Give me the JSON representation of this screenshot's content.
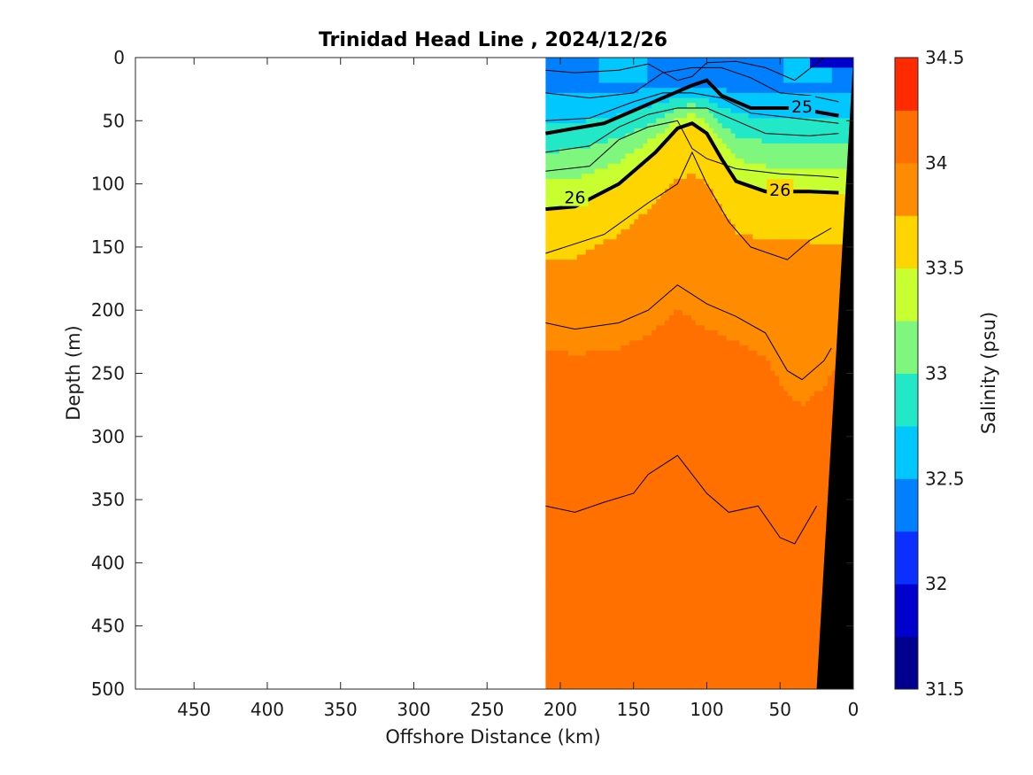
{
  "chart_data": {
    "type": "contour section",
    "title": "Trinidad Head Line , 2024/12/26",
    "xlabel": "Offshore Distance (km)",
    "ylabel": "Depth (m)",
    "x_axis_reversed": true,
    "xlim": [
      490,
      0
    ],
    "ylim": [
      0,
      500
    ],
    "x_ticks": [
      450,
      400,
      350,
      300,
      250,
      200,
      150,
      100,
      50,
      0
    ],
    "y_ticks": [
      0,
      50,
      100,
      150,
      200,
      250,
      300,
      350,
      400,
      450,
      500
    ],
    "data_extent_km": [
      210,
      0
    ],
    "colorbar": {
      "label": "Salinity (psu)",
      "range": [
        31.5,
        34.5
      ],
      "tick_labels": [
        "31.5",
        "32",
        "32.5",
        "33",
        "33.5",
        "34",
        "34.5"
      ],
      "levels": [
        31.5,
        31.75,
        32.0,
        32.25,
        32.5,
        32.75,
        33.0,
        33.25,
        33.5,
        33.75,
        34.0,
        34.25,
        34.5
      ],
      "colors": [
        "#00008f",
        "#0000cc",
        "#0a2fff",
        "#0080ff",
        "#00c8ff",
        "#22e8c8",
        "#7ff77f",
        "#c8ff30",
        "#ffd500",
        "#ff8c00",
        "#ff7000",
        "#ff2a00",
        "#d40000"
      ]
    },
    "density_contours": {
      "labeled": [
        {
          "level": 25,
          "label": "25",
          "points": [
            [
              210,
              60
            ],
            [
              170,
              52
            ],
            [
              130,
              32
            ],
            [
              110,
              22
            ],
            [
              100,
              18
            ],
            [
              90,
              30
            ],
            [
              70,
              40
            ],
            [
              40,
              40
            ],
            [
              10,
              46
            ]
          ]
        },
        {
          "level": 26,
          "label": "26",
          "points": [
            [
              210,
              120
            ],
            [
              190,
              118
            ],
            [
              160,
              100
            ],
            [
              135,
              75
            ],
            [
              120,
              56
            ],
            [
              110,
              52
            ],
            [
              100,
              60
            ],
            [
              90,
              80
            ],
            [
              80,
              98
            ],
            [
              60,
              106
            ],
            [
              30,
              106
            ],
            [
              10,
              107
            ]
          ]
        }
      ],
      "unlabeled": [
        {
          "points": [
            [
              210,
              10
            ],
            [
              190,
              12
            ],
            [
              160,
              10
            ],
            [
              140,
              5
            ],
            [
              120,
              18
            ],
            [
              110,
              15
            ],
            [
              100,
              4
            ],
            [
              80,
              3
            ],
            [
              60,
              8
            ],
            [
              40,
              18
            ],
            [
              20,
              0
            ]
          ]
        },
        {
          "points": [
            [
              210,
              28
            ],
            [
              180,
              32
            ],
            [
              150,
              28
            ],
            [
              130,
              12
            ],
            [
              110,
              8
            ],
            [
              90,
              8
            ],
            [
              70,
              16
            ],
            [
              50,
              28
            ],
            [
              30,
              30
            ],
            [
              10,
              35
            ]
          ]
        },
        {
          "points": [
            [
              210,
              50
            ],
            [
              180,
              48
            ],
            [
              150,
              35
            ],
            [
              130,
              28
            ],
            [
              110,
              28
            ],
            [
              90,
              32
            ],
            [
              70,
              44
            ],
            [
              40,
              48
            ],
            [
              10,
              52
            ]
          ]
        },
        {
          "points": [
            [
              210,
              75
            ],
            [
              180,
              70
            ],
            [
              160,
              55
            ],
            [
              140,
              45
            ],
            [
              120,
              40
            ],
            [
              100,
              40
            ],
            [
              80,
              50
            ],
            [
              60,
              60
            ],
            [
              30,
              62
            ],
            [
              10,
              60
            ]
          ]
        },
        {
          "points": [
            [
              210,
              90
            ],
            [
              180,
              86
            ],
            [
              160,
              65
            ],
            [
              140,
              55
            ],
            [
              120,
              50
            ],
            [
              110,
              72
            ],
            [
              100,
              80
            ],
            [
              80,
              88
            ],
            [
              50,
              92
            ],
            [
              20,
              94
            ],
            [
              10,
              95
            ]
          ]
        },
        {
          "points": [
            [
              210,
              155
            ],
            [
              170,
              140
            ],
            [
              140,
              115
            ],
            [
              120,
              100
            ],
            [
              110,
              75
            ],
            [
              100,
              100
            ],
            [
              85,
              130
            ],
            [
              70,
              150
            ],
            [
              45,
              160
            ],
            [
              30,
              145
            ],
            [
              15,
              135
            ]
          ]
        },
        {
          "points": [
            [
              210,
              210
            ],
            [
              190,
              215
            ],
            [
              160,
              210
            ],
            [
              140,
              200
            ],
            [
              120,
              180
            ],
            [
              100,
              195
            ],
            [
              80,
              205
            ],
            [
              60,
              218
            ],
            [
              45,
              248
            ],
            [
              35,
              255
            ],
            [
              20,
              240
            ],
            [
              15,
              230
            ]
          ]
        },
        {
          "points": [
            [
              210,
              355
            ],
            [
              190,
              360
            ],
            [
              170,
              352
            ],
            [
              150,
              345
            ],
            [
              140,
              330
            ],
            [
              120,
              315
            ],
            [
              100,
              345
            ],
            [
              85,
              360
            ],
            [
              65,
              355
            ],
            [
              50,
              380
            ],
            [
              40,
              385
            ],
            [
              25,
              355
            ]
          ]
        }
      ]
    },
    "bottom_profile_km_depth": [
      [
        0,
        0
      ],
      [
        25,
        500
      ],
      [
        0,
        500
      ]
    ]
  }
}
